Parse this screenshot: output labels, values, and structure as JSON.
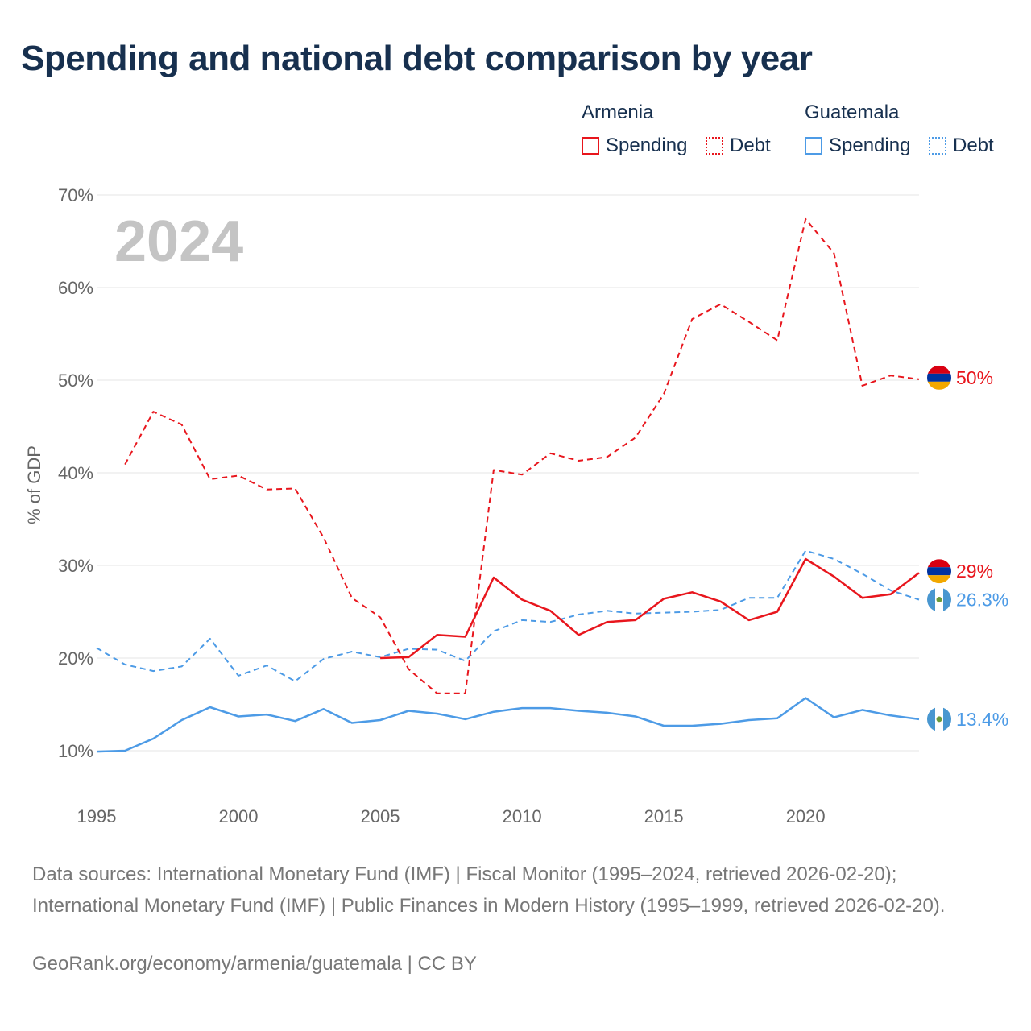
{
  "title": "Spending and national debt comparison by year",
  "legend": {
    "groups": [
      {
        "country": "Armenia",
        "color": "#e8161d",
        "items": [
          {
            "label": "Spending",
            "style": "solid"
          },
          {
            "label": "Debt",
            "style": "dotted"
          }
        ]
      },
      {
        "country": "Guatemala",
        "color": "#4d9be6",
        "items": [
          {
            "label": "Spending",
            "style": "solid"
          },
          {
            "label": "Debt",
            "style": "dotted"
          }
        ]
      }
    ]
  },
  "chart_data": {
    "type": "line",
    "title": "Spending and national debt comparison by year",
    "year_label": "2024",
    "xlabel": "",
    "ylabel": "% of GDP",
    "xlim": [
      1995,
      2024
    ],
    "ylim": [
      5,
      70
    ],
    "x_ticks": [
      1995,
      2000,
      2005,
      2010,
      2015,
      2020
    ],
    "y_ticks": [
      10,
      20,
      30,
      40,
      50,
      60,
      70
    ],
    "y_tick_labels": [
      "10%",
      "20%",
      "30%",
      "40%",
      "50%",
      "60%",
      "70%"
    ],
    "grid": true,
    "series": [
      {
        "name": "Armenia Debt",
        "country": "Armenia",
        "metric": "Debt",
        "color": "#e8161d",
        "dash": "dashed",
        "end_label": "50%",
        "x": [
          1996,
          1997,
          1998,
          1999,
          2000,
          2001,
          2002,
          2003,
          2004,
          2005,
          2006,
          2007,
          2008,
          2009,
          2010,
          2011,
          2012,
          2013,
          2014,
          2015,
          2016,
          2017,
          2018,
          2019,
          2020,
          2021,
          2022,
          2023,
          2024
        ],
        "values": [
          40.9,
          46.6,
          45.2,
          39.3,
          39.7,
          38.2,
          38.3,
          33.0,
          26.5,
          24.4,
          18.8,
          16.2,
          16.2,
          40.3,
          39.8,
          42.1,
          41.3,
          41.7,
          43.8,
          48.5,
          56.6,
          58.2,
          56.3,
          54.3,
          67.4,
          63.7,
          49.4,
          50.5,
          50.1
        ]
      },
      {
        "name": "Armenia Spending",
        "country": "Armenia",
        "metric": "Spending",
        "color": "#e8161d",
        "dash": "solid",
        "end_label": "29%",
        "x": [
          2005,
          2006,
          2007,
          2008,
          2009,
          2010,
          2011,
          2012,
          2013,
          2014,
          2015,
          2016,
          2017,
          2018,
          2019,
          2020,
          2021,
          2022,
          2023,
          2024
        ],
        "values": [
          20.0,
          20.1,
          22.5,
          22.3,
          28.7,
          26.3,
          25.1,
          22.5,
          23.9,
          24.1,
          26.4,
          27.1,
          26.1,
          24.1,
          25.0,
          30.7,
          28.8,
          26.5,
          26.9,
          29.2
        ]
      },
      {
        "name": "Guatemala Debt",
        "country": "Guatemala",
        "metric": "Debt",
        "color": "#4d9be6",
        "dash": "dashed",
        "end_label": "26.3%",
        "x": [
          1995,
          1996,
          1997,
          1998,
          1999,
          2000,
          2001,
          2002,
          2003,
          2004,
          2005,
          2006,
          2007,
          2008,
          2009,
          2010,
          2011,
          2012,
          2013,
          2014,
          2015,
          2016,
          2017,
          2018,
          2019,
          2020,
          2021,
          2022,
          2023,
          2024
        ],
        "values": [
          21.1,
          19.3,
          18.6,
          19.1,
          22.1,
          18.1,
          19.2,
          17.5,
          19.9,
          20.7,
          20.1,
          21.0,
          20.9,
          19.7,
          22.9,
          24.1,
          23.9,
          24.7,
          25.1,
          24.8,
          24.9,
          25.0,
          25.2,
          26.5,
          26.5,
          31.6,
          30.7,
          29.1,
          27.3,
          26.3
        ]
      },
      {
        "name": "Guatemala Spending",
        "country": "Guatemala",
        "metric": "Spending",
        "color": "#4d9be6",
        "dash": "solid",
        "end_label": "13.4%",
        "x": [
          1995,
          1996,
          1997,
          1998,
          1999,
          2000,
          2001,
          2002,
          2003,
          2004,
          2005,
          2006,
          2007,
          2008,
          2009,
          2010,
          2011,
          2012,
          2013,
          2014,
          2015,
          2016,
          2017,
          2018,
          2019,
          2020,
          2021,
          2022,
          2023,
          2024
        ],
        "values": [
          9.9,
          10.0,
          11.3,
          13.3,
          14.7,
          13.7,
          13.9,
          13.2,
          14.5,
          13.0,
          13.3,
          14.3,
          14.0,
          13.4,
          14.2,
          14.6,
          14.6,
          14.3,
          14.1,
          13.7,
          12.7,
          12.7,
          12.9,
          13.3,
          13.5,
          15.7,
          13.6,
          14.4,
          13.8,
          13.4
        ]
      }
    ]
  },
  "footer": {
    "sources": "Data sources: International Monetary Fund (IMF) | Fiscal Monitor (1995–2024, retrieved 2026-02-20); International Monetary Fund (IMF) | Public Finances in Modern History (1995–1999, retrieved 2026-02-20).",
    "credit": "GeoRank.org/economy/armenia/guatemala | CC BY"
  }
}
